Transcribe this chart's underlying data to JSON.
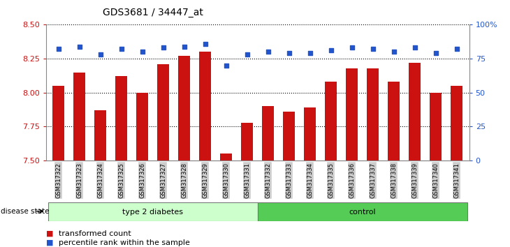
{
  "title": "GDS3681 / 34447_at",
  "samples": [
    "GSM317322",
    "GSM317323",
    "GSM317324",
    "GSM317325",
    "GSM317326",
    "GSM317327",
    "GSM317328",
    "GSM317329",
    "GSM317330",
    "GSM317331",
    "GSM317332",
    "GSM317333",
    "GSM317334",
    "GSM317335",
    "GSM317336",
    "GSM317337",
    "GSM317338",
    "GSM317339",
    "GSM317340",
    "GSM317341"
  ],
  "bar_values": [
    8.05,
    8.15,
    7.87,
    8.12,
    8.0,
    8.21,
    8.27,
    8.3,
    7.55,
    7.78,
    7.9,
    7.86,
    7.89,
    8.08,
    8.18,
    8.18,
    8.08,
    8.22,
    8.0,
    8.05
  ],
  "percentile_values": [
    82,
    84,
    78,
    82,
    80,
    83,
    84,
    86,
    70,
    78,
    80,
    79,
    79,
    81,
    83,
    82,
    80,
    83,
    79,
    82
  ],
  "ylim_left": [
    7.5,
    8.5
  ],
  "ylim_right": [
    0,
    100
  ],
  "yticks_left": [
    7.5,
    7.75,
    8.0,
    8.25,
    8.5
  ],
  "yticks_right": [
    0,
    25,
    50,
    75,
    100
  ],
  "bar_color": "#cc1111",
  "percentile_color": "#2255cc",
  "group1_label": "type 2 diabetes",
  "group2_label": "control",
  "group1_count": 10,
  "group2_count": 10,
  "legend_bar": "transformed count",
  "legend_pct": "percentile rank within the sample",
  "disease_state_label": "disease state",
  "group1_color": "#ccffcc",
  "group2_color": "#55cc55",
  "xticklabel_bg": "#cccccc",
  "background_color": "#ffffff"
}
